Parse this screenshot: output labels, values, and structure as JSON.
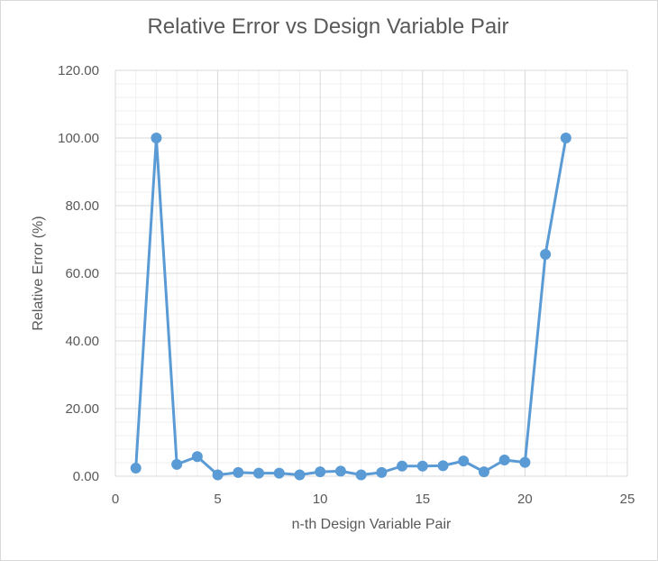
{
  "chart_data": {
    "type": "line",
    "title": "Relative Error vs Design Variable Pair",
    "xlabel": "n-th Design Variable Pair",
    "ylabel": "Relative Error (%)",
    "xlim": [
      0,
      25
    ],
    "ylim": [
      0,
      120
    ],
    "x_ticks": [
      "0",
      "5",
      "10",
      "15",
      "20",
      "25"
    ],
    "y_ticks": [
      "0.00",
      "20.00",
      "40.00",
      "60.00",
      "80.00",
      "100.00",
      "120.00"
    ],
    "grid": true,
    "legend": "none",
    "series_color": "#5B9BD5",
    "gridline_color": "#d9d9d9",
    "minor_gridline_color": "#efefef",
    "series": [
      {
        "x": [
          1,
          2,
          3,
          4,
          5,
          6,
          7,
          8,
          9,
          10,
          11,
          12,
          13,
          14,
          15,
          16,
          17,
          18,
          19,
          20,
          21,
          22
        ],
        "values": [
          2.4,
          100.0,
          3.5,
          5.8,
          0.4,
          1.1,
          0.9,
          0.9,
          0.4,
          1.3,
          1.5,
          0.4,
          1.1,
          3.0,
          3.0,
          3.1,
          4.5,
          1.3,
          4.8,
          4.1,
          65.6,
          100.0
        ]
      }
    ]
  }
}
